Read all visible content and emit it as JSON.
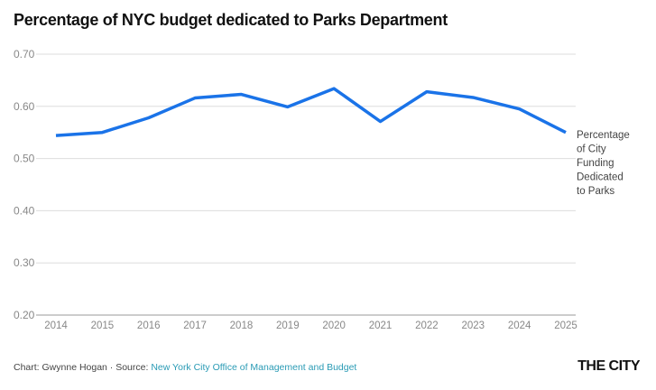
{
  "chart_data": {
    "type": "line",
    "title": "Percentage of NYC budget dedicated to Parks Department",
    "x": [
      "2014",
      "2015",
      "2016",
      "2017",
      "2018",
      "2019",
      "2020",
      "2021",
      "2022",
      "2023",
      "2024",
      "2025"
    ],
    "series": [
      {
        "name": "Percentage of City Funding Dedicated to Parks",
        "label_lines": [
          "Percentage",
          "of City",
          "Funding",
          "Dedicated",
          "to Parks"
        ],
        "color": "#1a73e8",
        "values": [
          0.544,
          0.55,
          0.578,
          0.616,
          0.623,
          0.599,
          0.634,
          0.571,
          0.628,
          0.617,
          0.595,
          0.55
        ]
      }
    ],
    "yticks": [
      "0.70",
      "0.60",
      "0.50",
      "0.40",
      "0.30",
      "0.20"
    ],
    "ylim": [
      0.2,
      0.7
    ],
    "grid": true,
    "xlabel": "",
    "ylabel": ""
  },
  "footer": {
    "credit": "Chart: Gwynne Hogan · Source: ",
    "source": "New York City Office of Management and Budget",
    "logo": "THE CITY"
  }
}
